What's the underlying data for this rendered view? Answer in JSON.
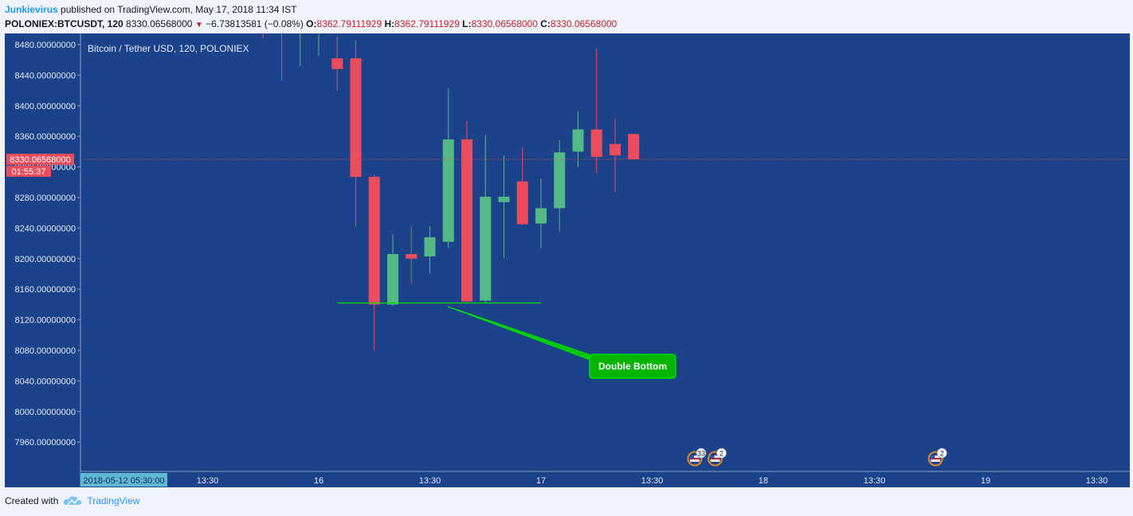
{
  "header": {
    "author": "Junkievirus",
    "published_text": "published on TradingView.com, May 17, 2018 11:34 IST",
    "symbol": "POLONIEX:BTCUSDT, 120",
    "last_price": "8330.06568000",
    "change": "−6.73813581 (−0.08%)",
    "open_label": "O:",
    "open_value": "8362.79111929",
    "high_label": "H:",
    "high_value": "8362.79111929",
    "low_label": "L:",
    "low_value": "8330.06568000",
    "close_label": "C:",
    "close_value": "8330.06568000"
  },
  "footer": {
    "created_with": "Created with",
    "brand": "TradingView"
  },
  "colors": {
    "background": "#1c428a",
    "up": "#53b987",
    "down": "#eb4d5c",
    "annotation": "#00e000",
    "price_line": "#eb4d5c"
  },
  "chart_data": {
    "type": "candlestick",
    "title": "Bitcoin / Tether USD, 120, POLONIEX",
    "ylim": [
      7920,
      8500
    ],
    "y_ticks": [
      "8480.00000000",
      "8440.00000000",
      "8400.00000000",
      "8360.00000000",
      "8320.00000000",
      "8280.00000000",
      "8240.00000000",
      "8200.00000000",
      "8160.00000000",
      "8120.00000000",
      "8080.00000000",
      "8040.00000000",
      "8000.00000000",
      "7960.00000000"
    ],
    "x_ticks": [
      {
        "label": "2018-05-12 05:30:00",
        "t": -12
      },
      {
        "label": "13:30",
        "t": -6
      },
      {
        "label": "16",
        "t": 0
      },
      {
        "label": "13:30",
        "t": 6
      },
      {
        "label": "17",
        "t": 12
      },
      {
        "label": "13:30",
        "t": 18
      },
      {
        "label": "18",
        "t": 24
      },
      {
        "label": "13:30",
        "t": 30
      },
      {
        "label": "19",
        "t": 36
      },
      {
        "label": "13:30",
        "t": 42
      }
    ],
    "current_price_label": "8330.06568000",
    "countdown_label": "01:55:37",
    "candles": [
      {
        "t": -3,
        "o": 8530,
        "h": 8560,
        "l": 8488,
        "c": 8510
      },
      {
        "t": -2,
        "o": 8520,
        "h": 8530,
        "l": 8433,
        "c": 8515
      },
      {
        "t": -1,
        "o": 8520,
        "h": 8540,
        "l": 8452,
        "c": 8530
      },
      {
        "t": 0,
        "o": 8500,
        "h": 8530,
        "l": 8465,
        "c": 8510
      },
      {
        "t": 1,
        "o": 8462,
        "h": 8490,
        "l": 8420,
        "c": 8448
      },
      {
        "t": 2,
        "o": 8462,
        "h": 8485,
        "l": 8242,
        "c": 8307
      },
      {
        "t": 3,
        "o": 8307,
        "h": 8310,
        "l": 8080,
        "c": 8140
      },
      {
        "t": 4,
        "o": 8140,
        "h": 8232,
        "l": 8138,
        "c": 8206
      },
      {
        "t": 5,
        "o": 8206,
        "h": 8242,
        "l": 8167,
        "c": 8200
      },
      {
        "t": 6,
        "o": 8203,
        "h": 8242,
        "l": 8180,
        "c": 8228
      },
      {
        "t": 7,
        "o": 8222,
        "h": 8423,
        "l": 8214,
        "c": 8356
      },
      {
        "t": 8,
        "o": 8356,
        "h": 8380,
        "l": 8141,
        "c": 8144
      },
      {
        "t": 9,
        "o": 8145,
        "h": 8362,
        "l": 8142,
        "c": 8281
      },
      {
        "t": 10,
        "o": 8274,
        "h": 8335,
        "l": 8201,
        "c": 8281
      },
      {
        "t": 11,
        "o": 8301,
        "h": 8345,
        "l": 8244,
        "c": 8245
      },
      {
        "t": 12,
        "o": 8246,
        "h": 8305,
        "l": 8213,
        "c": 8266
      },
      {
        "t": 13,
        "o": 8266,
        "h": 8355,
        "l": 8236,
        "c": 8339
      },
      {
        "t": 14,
        "o": 8340,
        "h": 8393,
        "l": 8320,
        "c": 8369
      },
      {
        "t": 15,
        "o": 8369,
        "h": 8475,
        "l": 8312,
        "c": 8333
      },
      {
        "t": 16,
        "o": 8350,
        "h": 8383,
        "l": 8287,
        "c": 8335
      },
      {
        "t": 17,
        "o": 8363,
        "h": 8363,
        "l": 8330,
        "c": 8330
      }
    ],
    "annotation": {
      "label": "Double Bottom",
      "support_level": 8142
    },
    "events": [
      {
        "t": 20.3,
        "count": "33"
      },
      {
        "t": 21.4,
        "count": "2"
      },
      {
        "t": 33.3,
        "count": "2"
      }
    ]
  }
}
